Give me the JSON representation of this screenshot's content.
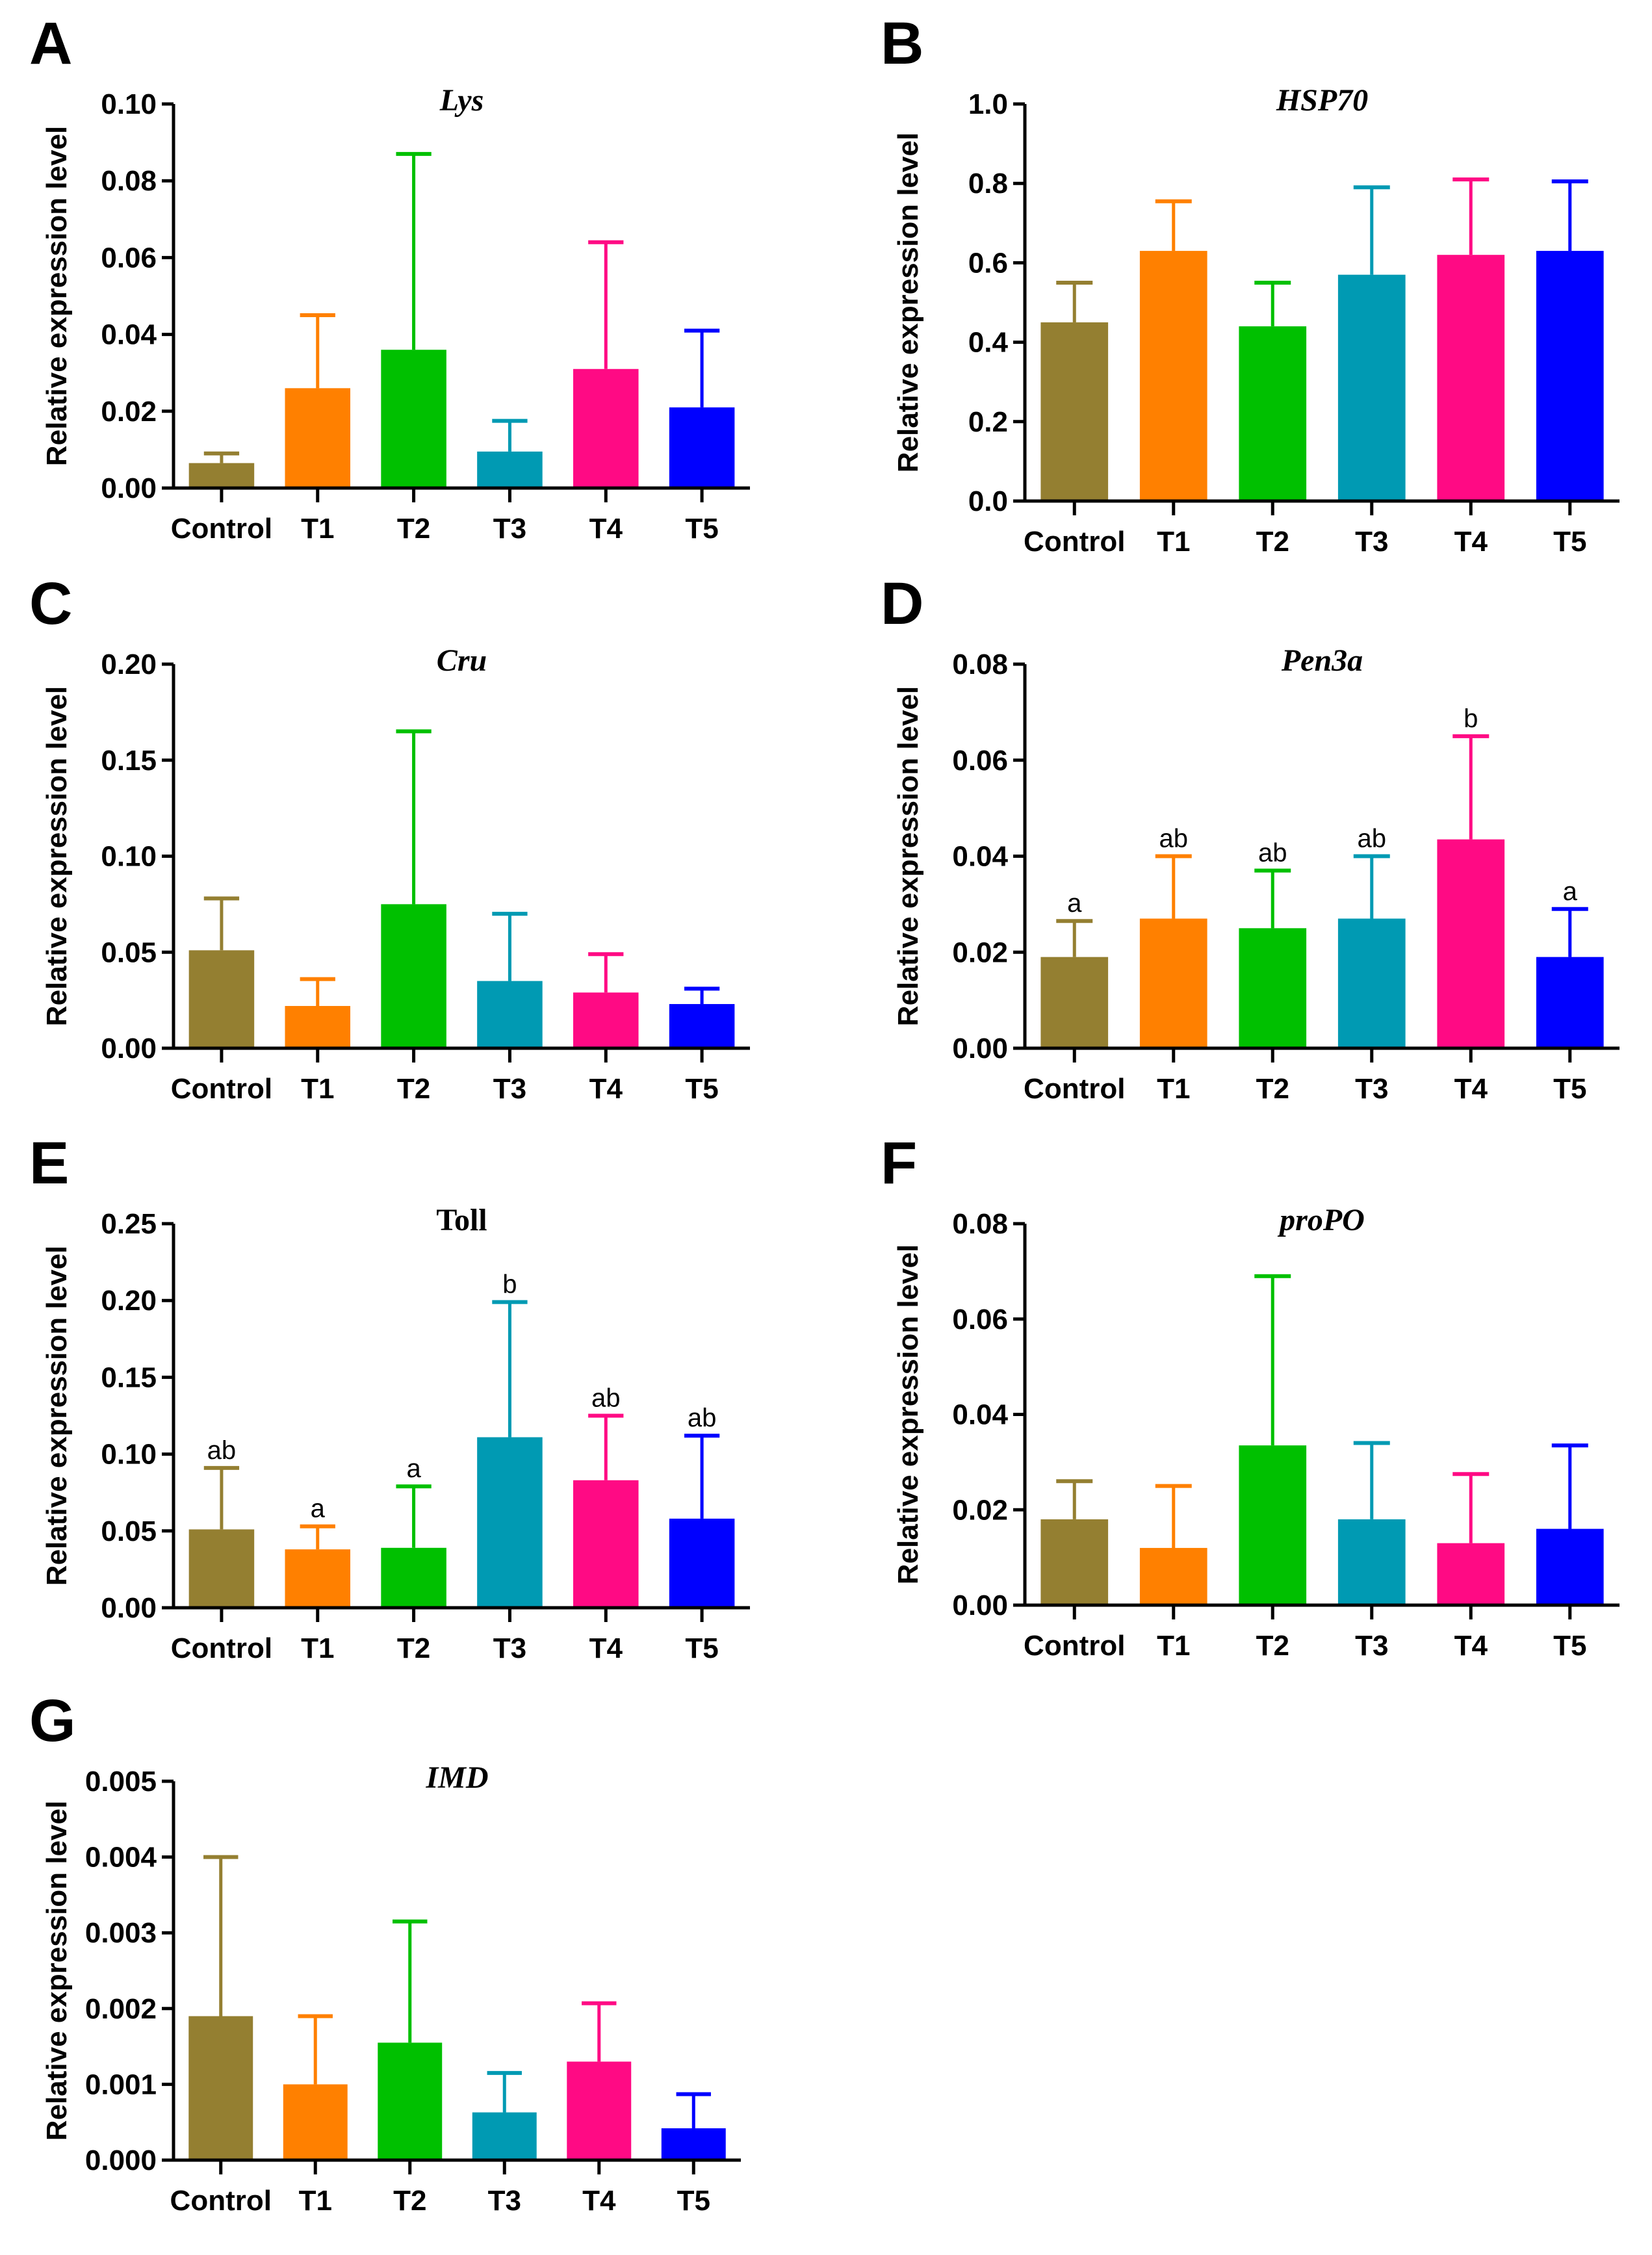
{
  "colors": {
    "Control": "#947f31",
    "T1": "#ff8000",
    "T2": "#00c000",
    "T3": "#009ab3",
    "T4": "#ff0a84",
    "T5": "#0000ff"
  },
  "chart_data": [
    {
      "panel": "A",
      "type": "bar",
      "title": "Lys",
      "title_italic": true,
      "ylabel": "Relative expression level",
      "xlabel": "",
      "categories": [
        "Control",
        "T1",
        "T2",
        "T3",
        "T4",
        "T5"
      ],
      "values": [
        0.0065,
        0.026,
        0.036,
        0.0095,
        0.031,
        0.021
      ],
      "error_upper": [
        0.009,
        0.045,
        0.087,
        0.0175,
        0.064,
        0.041
      ],
      "ylim": [
        0,
        0.1
      ],
      "yticks": [
        "0.00",
        "0.02",
        "0.04",
        "0.06",
        "0.08",
        "0.10"
      ],
      "significance": []
    },
    {
      "panel": "B",
      "type": "bar",
      "title": "HSP70",
      "title_italic": true,
      "ylabel": "Relative expression level",
      "xlabel": "",
      "categories": [
        "Control",
        "T1",
        "T2",
        "T3",
        "T4",
        "T5"
      ],
      "values": [
        0.45,
        0.63,
        0.44,
        0.57,
        0.62,
        0.63
      ],
      "error_upper": [
        0.55,
        0.755,
        0.55,
        0.79,
        0.81,
        0.805
      ],
      "ylim": [
        0,
        1.0
      ],
      "yticks": [
        "0.0",
        "0.2",
        "0.4",
        "0.6",
        "0.8",
        "1.0"
      ],
      "significance": []
    },
    {
      "panel": "C",
      "type": "bar",
      "title": "Cru",
      "title_italic": true,
      "ylabel": "Relative expression level",
      "xlabel": "",
      "categories": [
        "Control",
        "T1",
        "T2",
        "T3",
        "T4",
        "T5"
      ],
      "values": [
        0.051,
        0.022,
        0.075,
        0.035,
        0.029,
        0.023
      ],
      "error_upper": [
        0.078,
        0.036,
        0.165,
        0.07,
        0.049,
        0.031
      ],
      "ylim": [
        0,
        0.2
      ],
      "yticks": [
        "0.00",
        "0.05",
        "0.10",
        "0.15",
        "0.20"
      ],
      "significance": []
    },
    {
      "panel": "D",
      "type": "bar",
      "title": "Pen3a",
      "title_italic": true,
      "ylabel": "Relative expression level",
      "xlabel": "",
      "categories": [
        "Control",
        "T1",
        "T2",
        "T3",
        "T4",
        "T5"
      ],
      "values": [
        0.019,
        0.027,
        0.025,
        0.027,
        0.0435,
        0.019
      ],
      "error_upper": [
        0.0265,
        0.04,
        0.037,
        0.04,
        0.065,
        0.029
      ],
      "ylim": [
        0,
        0.08
      ],
      "yticks": [
        "0.00",
        "0.02",
        "0.04",
        "0.06",
        "0.08"
      ],
      "significance": [
        "a",
        "ab",
        "ab",
        "ab",
        "b",
        "a"
      ]
    },
    {
      "panel": "E",
      "type": "bar",
      "title": "Toll",
      "title_italic": false,
      "ylabel": "Relative expression level",
      "xlabel": "",
      "categories": [
        "Control",
        "T1",
        "T2",
        "T3",
        "T4",
        "T5"
      ],
      "values": [
        0.051,
        0.038,
        0.039,
        0.111,
        0.083,
        0.058
      ],
      "error_upper": [
        0.091,
        0.053,
        0.079,
        0.199,
        0.125,
        0.112
      ],
      "ylim": [
        0,
        0.25
      ],
      "yticks": [
        "0.00",
        "0.05",
        "0.10",
        "0.15",
        "0.20",
        "0.25"
      ],
      "significance": [
        "ab",
        "a",
        "a",
        "b",
        "ab",
        "ab"
      ]
    },
    {
      "panel": "F",
      "type": "bar",
      "title": "proPO",
      "title_italic": true,
      "ylabel": "Relative expression level",
      "xlabel": "",
      "categories": [
        "Control",
        "T1",
        "T2",
        "T3",
        "T4",
        "T5"
      ],
      "values": [
        0.018,
        0.012,
        0.0335,
        0.018,
        0.013,
        0.016
      ],
      "error_upper": [
        0.026,
        0.025,
        0.069,
        0.034,
        0.0275,
        0.0335
      ],
      "ylim": [
        0,
        0.08
      ],
      "yticks": [
        "0.00",
        "0.02",
        "0.04",
        "0.06",
        "0.08"
      ],
      "significance": []
    },
    {
      "panel": "G",
      "type": "bar",
      "title": "IMD",
      "title_italic": true,
      "ylabel": "Relative expression level",
      "xlabel": "",
      "categories": [
        "Control",
        "T1",
        "T2",
        "T3",
        "T4",
        "T5"
      ],
      "values": [
        0.0019,
        0.001,
        0.00155,
        0.00063,
        0.0013,
        0.00042
      ],
      "error_upper": [
        0.004,
        0.0019,
        0.00315,
        0.00115,
        0.00207,
        0.00087
      ],
      "ylim": [
        0,
        0.005
      ],
      "yticks": [
        "0.000",
        "0.001",
        "0.002",
        "0.003",
        "0.004",
        "0.005"
      ],
      "significance": []
    }
  ]
}
